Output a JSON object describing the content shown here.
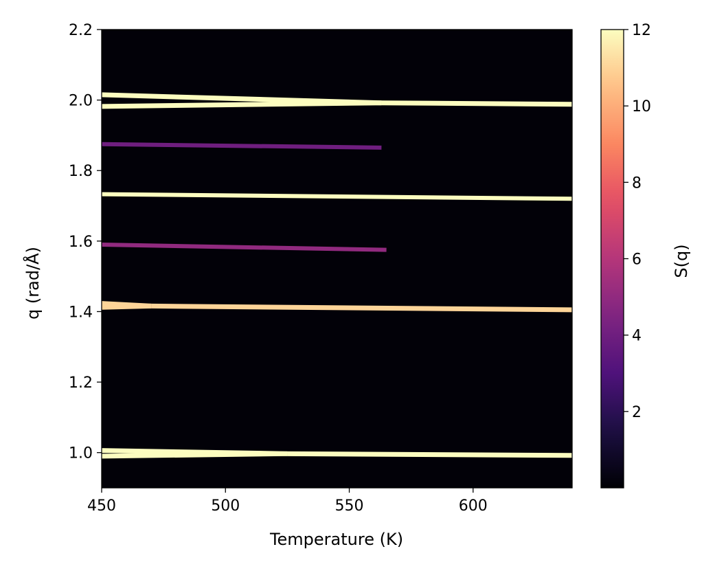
{
  "chart_data": {
    "type": "heatmap",
    "xlabel": "Temperature (K)",
    "ylabel": "q (rad/Å)",
    "xlim": [
      450,
      640
    ],
    "ylim": [
      0.9,
      2.2
    ],
    "xticks": [
      450,
      500,
      550,
      600
    ],
    "xtick_labels": [
      "450",
      "500",
      "550",
      "600"
    ],
    "yticks": [
      1.0,
      1.2,
      1.4,
      1.6,
      1.8,
      2.0,
      2.2
    ],
    "ytick_labels": [
      "1.0",
      "1.2",
      "1.4",
      "1.6",
      "1.8",
      "2.0",
      "2.2"
    ],
    "background_value": 0.1,
    "colormap": "magma",
    "colorbar": {
      "label": "S(q)",
      "vmin": 0,
      "vmax": 12,
      "ticks": [
        2,
        4,
        6,
        8,
        10,
        12
      ],
      "tick_labels": [
        "2",
        "4",
        "6",
        "8",
        "10",
        "12"
      ]
    },
    "peaks": [
      {
        "q_start": 1.0,
        "q_end": 0.992,
        "T_end": 640,
        "intensity": 12,
        "split_q": [
          1.006,
          0.99
        ],
        "merge_T": 525
      },
      {
        "q_start": 1.417,
        "q_end": 1.405,
        "T_end": 640,
        "intensity": 11,
        "split_q": [
          1.423,
          1.412
        ],
        "merge_T": 470
      },
      {
        "q_start": 1.59,
        "q_end": 1.575,
        "T_end": 565,
        "intensity": 5
      },
      {
        "q_start": 1.733,
        "q_end": 1.72,
        "T_end": 640,
        "intensity": 12
      },
      {
        "q_start": 1.875,
        "q_end": 1.865,
        "T_end": 563,
        "intensity": 4
      },
      {
        "q_start": 1.998,
        "q_end": 1.988,
        "T_end": 640,
        "intensity": 12,
        "split_q": [
          2.015,
          1.982
        ],
        "merge_T": 563
      }
    ]
  }
}
